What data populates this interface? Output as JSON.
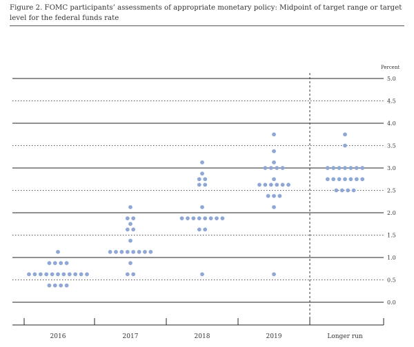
{
  "figure": {
    "title": "Figure 2. FOMC participants’ assessments of appropriate monetary policy: Midpoint of target range or target level for the federal funds rate"
  },
  "chart_data": {
    "type": "scatter",
    "title": "Figure 2. FOMC participants’ assessments of appropriate monetary policy: Midpoint of target range or target level for the federal funds rate",
    "xlabel": "",
    "ylabel": "Percent",
    "categories": [
      "2016",
      "2017",
      "2018",
      "2019",
      "Longer run"
    ],
    "ylim": [
      0,
      5
    ],
    "y_ticks": [
      "0.0",
      "0.5",
      "1.0",
      "1.5",
      "2.0",
      "2.5",
      "3.0",
      "3.5",
      "4.0",
      "4.5",
      "5.0"
    ],
    "grid": true,
    "dot_color": "#8fa7d4",
    "points": {
      "2016": [
        {
          "y": 0.625,
          "count": 11
        },
        {
          "y": 0.375,
          "count": 4
        },
        {
          "y": 0.875,
          "count": 4
        },
        {
          "y": 1.125,
          "count": 1
        }
      ],
      "2017": [
        {
          "y": 0.625,
          "count": 2
        },
        {
          "y": 0.875,
          "count": 1
        },
        {
          "y": 1.125,
          "count": 8
        },
        {
          "y": 1.375,
          "count": 1
        },
        {
          "y": 1.625,
          "count": 2
        },
        {
          "y": 1.75,
          "count": 1
        },
        {
          "y": 1.875,
          "count": 2
        },
        {
          "y": 2.125,
          "count": 1
        }
      ],
      "2018": [
        {
          "y": 0.625,
          "count": 1
        },
        {
          "y": 1.625,
          "count": 2
        },
        {
          "y": 1.875,
          "count": 8
        },
        {
          "y": 2.125,
          "count": 1
        },
        {
          "y": 2.625,
          "count": 2
        },
        {
          "y": 2.75,
          "count": 2
        },
        {
          "y": 2.875,
          "count": 1
        },
        {
          "y": 3.125,
          "count": 1
        }
      ],
      "2019": [
        {
          "y": 0.625,
          "count": 1
        },
        {
          "y": 2.125,
          "count": 1
        },
        {
          "y": 2.375,
          "count": 3
        },
        {
          "y": 2.625,
          "count": 6
        },
        {
          "y": 2.75,
          "count": 1
        },
        {
          "y": 3.0,
          "count": 4
        },
        {
          "y": 3.125,
          "count": 1
        },
        {
          "y": 3.375,
          "count": 1
        },
        {
          "y": 3.75,
          "count": 1
        }
      ],
      "Longer run": [
        {
          "y": 2.5,
          "count": 4
        },
        {
          "y": 2.75,
          "count": 7
        },
        {
          "y": 3.0,
          "count": 7
        },
        {
          "y": 3.5,
          "count": 1
        },
        {
          "y": 3.75,
          "count": 1
        }
      ]
    }
  }
}
